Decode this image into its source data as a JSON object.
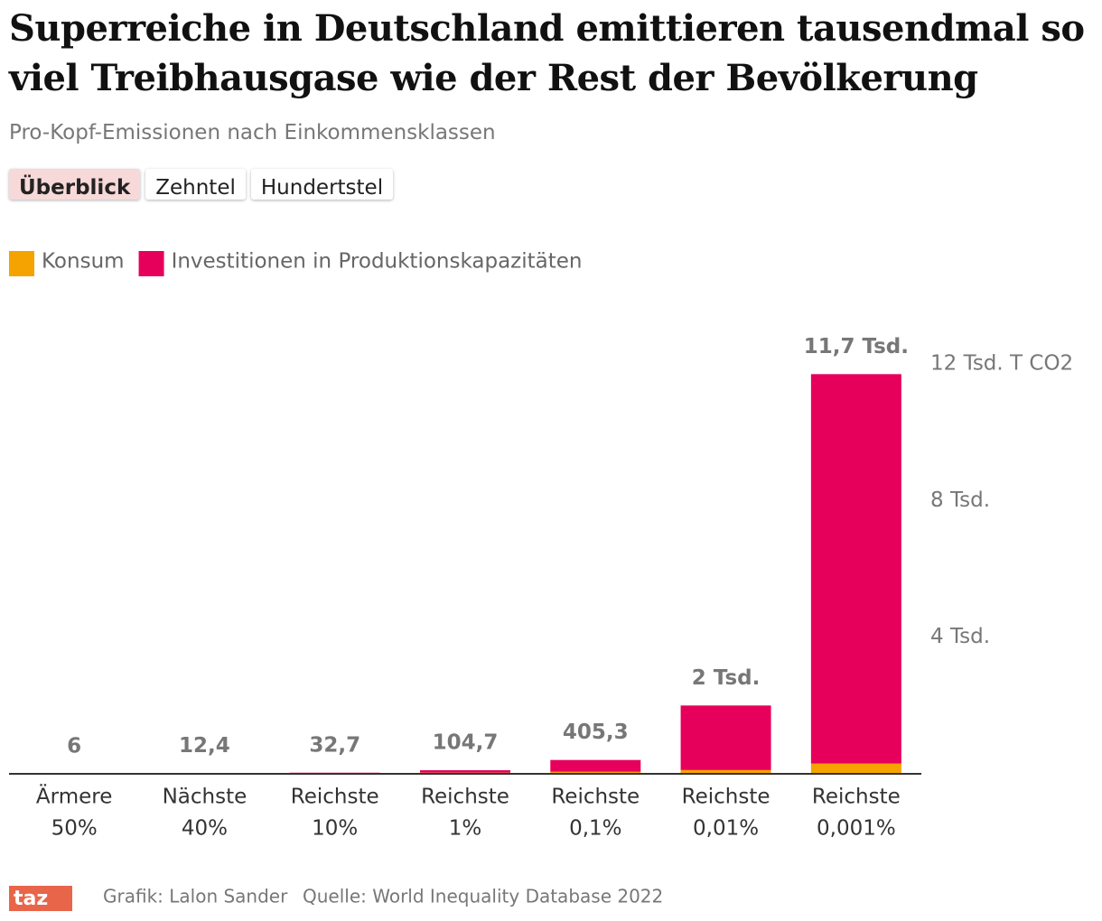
{
  "chart_data": {
    "type": "stacked-bar",
    "title": "Superreiche in Deutschland emittieren tausendmal so viel Treibhausgase wie der Rest der Bevölkerung",
    "subtitle": "Pro-Kopf-Emissionen nach Einkommensklassen",
    "tabs": [
      "Überblick",
      "Zehntel",
      "Hundertstel"
    ],
    "categories": [
      [
        "Ärmere",
        "50%"
      ],
      [
        "Nächste",
        "40%"
      ],
      [
        "Reichste",
        "10%"
      ],
      [
        "Reichste",
        "1%"
      ],
      [
        "Reichste",
        "0,1%"
      ],
      [
        "Reichste",
        "0,01%"
      ],
      [
        "Reichste",
        "0,001%"
      ]
    ],
    "series": [
      {
        "name": "Konsum",
        "color": "#f5a300",
        "values": [
          5.5,
          10.5,
          20.5,
          35,
          60,
          110,
          300
        ]
      },
      {
        "name": "Investitionen in Produktionskapazitäten",
        "color": "#e6005c",
        "values": [
          0.5,
          1.9,
          12.2,
          69.7,
          345.3,
          1890,
          11400
        ]
      }
    ],
    "totals": [
      6,
      12.4,
      32.7,
      104.7,
      405.3,
      2000,
      11700
    ],
    "total_labels": [
      "6",
      "12,4",
      "32,7",
      "104,7",
      "405,3",
      "2 Tsd.",
      "11,7 Tsd."
    ],
    "ylim": [
      0,
      12000
    ],
    "yticks": [
      {
        "value": 4000,
        "label": "4 Tsd."
      },
      {
        "value": 8000,
        "label": "8 Tsd."
      },
      {
        "value": 12000,
        "label": "12 Tsd. T CO2"
      }
    ],
    "logo": "taz",
    "credit": "Grafik: Lalon Sander",
    "source": "Quelle: World Inequality Database 2022"
  }
}
